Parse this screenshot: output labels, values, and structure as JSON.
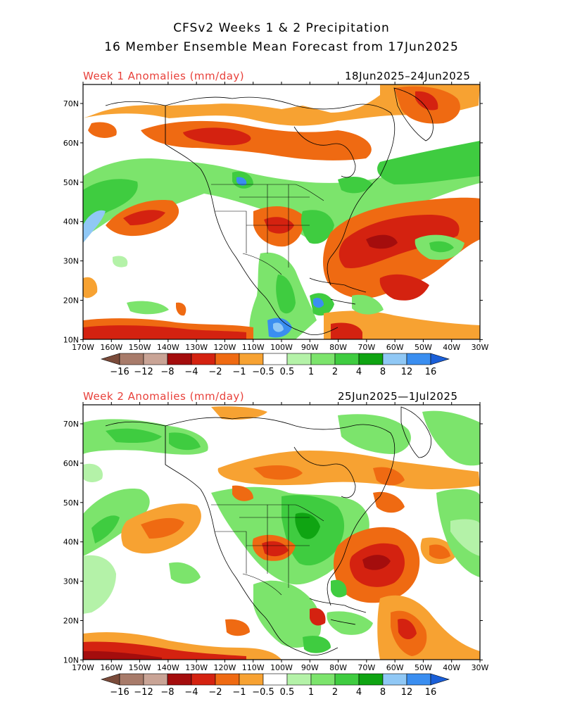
{
  "title": {
    "line1": "CFSv2 Weeks 1 & 2 Precipitation",
    "line2": "16 Member Ensemble Mean Forecast from 17Jun2025"
  },
  "panels": [
    {
      "label": "Week 1 Anomalies (mm/day)",
      "dates": "18Jun2025–24Jun2025"
    },
    {
      "label": "Week 2 Anomalies (mm/day)",
      "dates": "25Jun2025—1Jul2025"
    }
  ],
  "lat_ticks": [
    "70N",
    "60N",
    "50N",
    "40N",
    "30N",
    "20N",
    "10N"
  ],
  "lon_ticks": [
    "170W",
    "160W",
    "150W",
    "140W",
    "130W",
    "120W",
    "110W",
    "100W",
    "90W",
    "80W",
    "70W",
    "60W",
    "50W",
    "40W",
    "30W"
  ],
  "colorbar": {
    "labels": [
      "−16",
      "−12",
      "−8",
      "−4",
      "−2",
      "−1",
      "−0.5",
      "0.5",
      "1",
      "2",
      "4",
      "8",
      "12",
      "16"
    ],
    "colors": [
      "#7a4b3a",
      "#a87b6a",
      "#c9a496",
      "#a40d0d",
      "#d42210",
      "#ef6a12",
      "#f7a232",
      "#ffffff",
      "#b4f2a8",
      "#7ce46c",
      "#3fcc40",
      "#0fa412",
      "#90c8f5",
      "#3a8ef0",
      "#1a5fd8"
    ]
  }
}
